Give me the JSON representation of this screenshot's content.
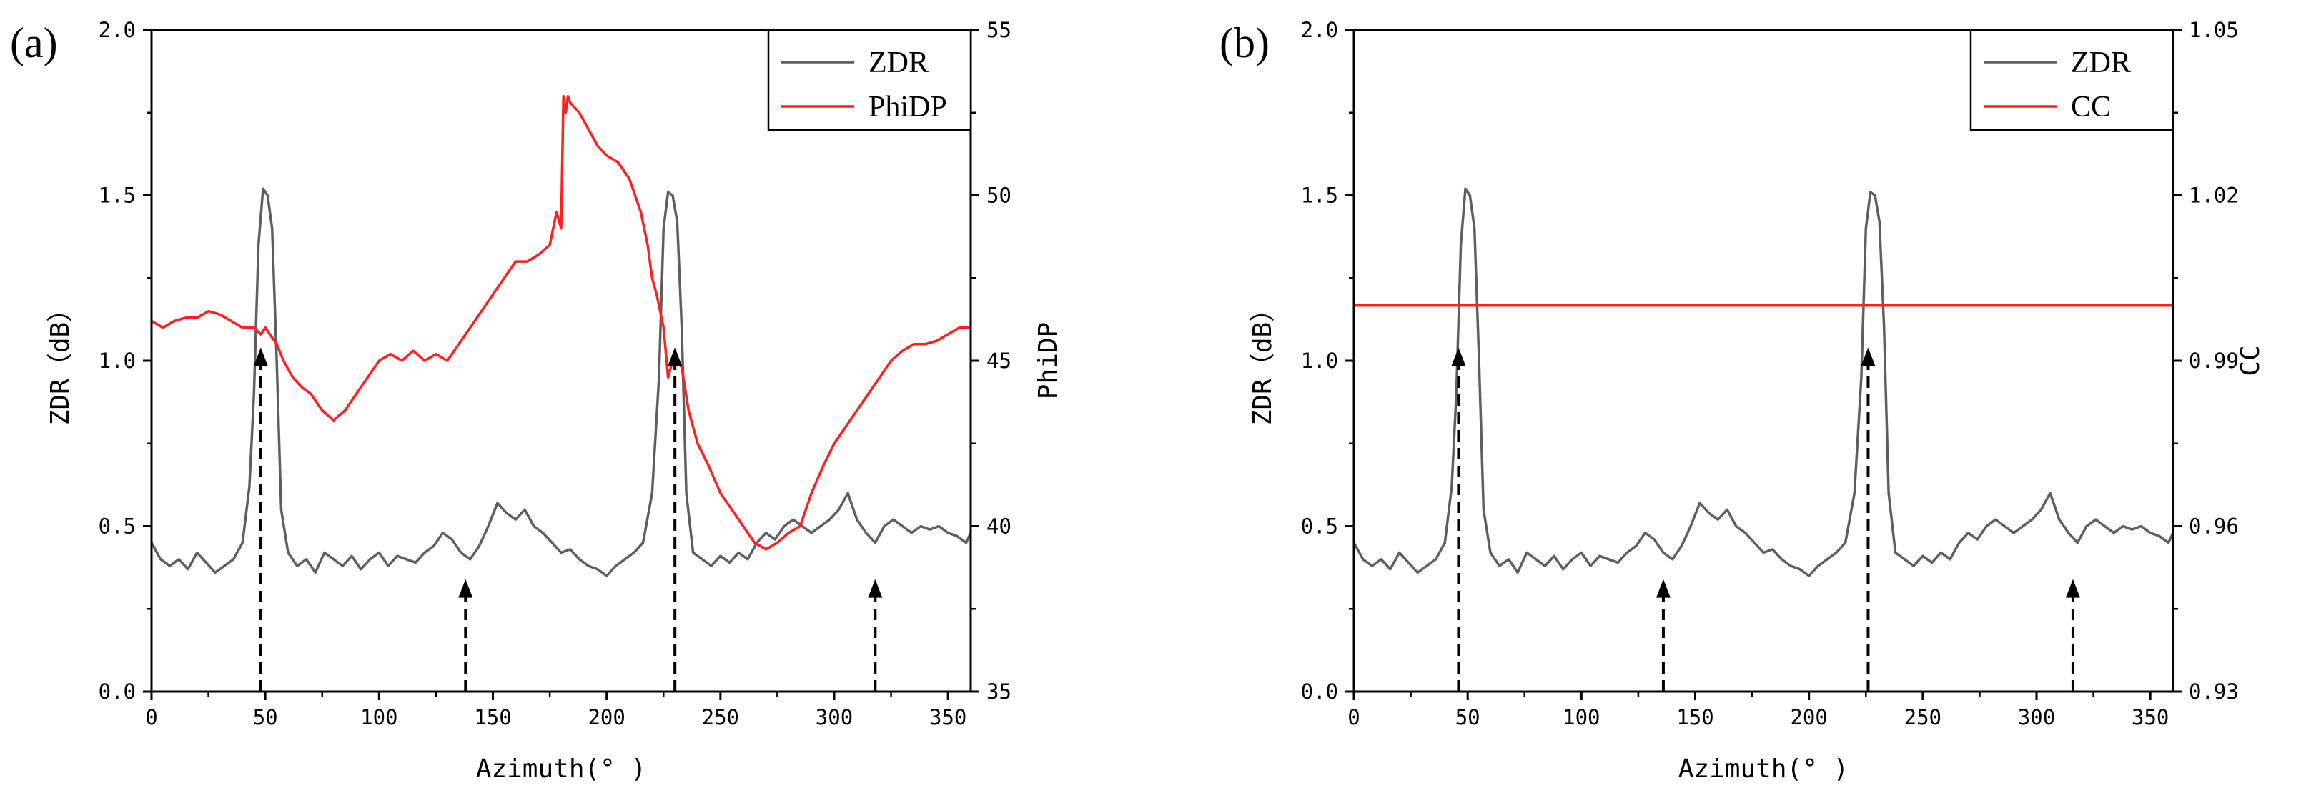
{
  "chart_data": [
    {
      "panel_label": "(a)",
      "type": "line",
      "xlabel": "Azimuth(° )",
      "ylabel_left": "ZDR（dB）",
      "ylabel_right": "PhiDP",
      "xlim": [
        0,
        360
      ],
      "xticks": [
        0,
        50,
        100,
        150,
        200,
        250,
        300,
        350
      ],
      "ylim_left": [
        0,
        2
      ],
      "yticks_left": [
        "0.0",
        "0.5",
        "1.0",
        "1.5",
        "2.0"
      ],
      "ylim_right": [
        35,
        55
      ],
      "yticks_right": [
        "35",
        "40",
        "45",
        "50",
        "55"
      ],
      "legend": [
        "ZDR",
        "PhiDP"
      ],
      "series": [
        {
          "name": "ZDR",
          "axis": "left",
          "color": "#5f5f5f",
          "x": [
            0,
            4,
            8,
            12,
            16,
            20,
            24,
            28,
            32,
            36,
            40,
            43,
            45,
            47,
            49,
            51,
            53,
            55,
            57,
            60,
            64,
            68,
            72,
            76,
            80,
            84,
            88,
            92,
            96,
            100,
            104,
            108,
            112,
            116,
            120,
            124,
            128,
            132,
            136,
            140,
            144,
            148,
            152,
            156,
            160,
            164,
            168,
            172,
            176,
            180,
            184,
            188,
            192,
            196,
            200,
            204,
            208,
            212,
            216,
            220,
            223,
            225,
            227,
            229,
            231,
            233,
            235,
            238,
            242,
            246,
            250,
            254,
            258,
            262,
            266,
            270,
            274,
            278,
            282,
            286,
            290,
            294,
            298,
            302,
            306,
            310,
            314,
            318,
            322,
            326,
            330,
            334,
            338,
            342,
            346,
            350,
            354,
            358,
            360
          ],
          "y": [
            0.45,
            0.4,
            0.38,
            0.4,
            0.37,
            0.42,
            0.39,
            0.36,
            0.38,
            0.4,
            0.45,
            0.62,
            0.9,
            1.35,
            1.52,
            1.5,
            1.4,
            1.0,
            0.55,
            0.42,
            0.38,
            0.4,
            0.36,
            0.42,
            0.4,
            0.38,
            0.41,
            0.37,
            0.4,
            0.42,
            0.38,
            0.41,
            0.4,
            0.39,
            0.42,
            0.44,
            0.48,
            0.46,
            0.42,
            0.4,
            0.44,
            0.5,
            0.57,
            0.54,
            0.52,
            0.55,
            0.5,
            0.48,
            0.45,
            0.42,
            0.43,
            0.4,
            0.38,
            0.37,
            0.35,
            0.38,
            0.4,
            0.42,
            0.45,
            0.6,
            0.95,
            1.4,
            1.51,
            1.5,
            1.42,
            1.1,
            0.6,
            0.42,
            0.4,
            0.38,
            0.41,
            0.39,
            0.42,
            0.4,
            0.45,
            0.48,
            0.46,
            0.5,
            0.52,
            0.5,
            0.48,
            0.5,
            0.52,
            0.55,
            0.6,
            0.52,
            0.48,
            0.45,
            0.5,
            0.52,
            0.5,
            0.48,
            0.5,
            0.49,
            0.5,
            0.48,
            0.47,
            0.45,
            0.48
          ]
        },
        {
          "name": "PhiDP",
          "axis": "right",
          "color": "#ff2020",
          "x": [
            0,
            5,
            10,
            15,
            20,
            25,
            30,
            35,
            40,
            45,
            48,
            50,
            52,
            55,
            58,
            62,
            66,
            70,
            75,
            80,
            85,
            90,
            95,
            100,
            105,
            110,
            115,
            120,
            125,
            130,
            135,
            140,
            145,
            150,
            155,
            160,
            165,
            170,
            175,
            178,
            180,
            181,
            182,
            183,
            184,
            188,
            192,
            196,
            200,
            205,
            210,
            215,
            218,
            220,
            222,
            225,
            227,
            229,
            231,
            233,
            236,
            240,
            245,
            250,
            255,
            260,
            265,
            270,
            275,
            280,
            285,
            290,
            295,
            300,
            305,
            310,
            315,
            320,
            325,
            330,
            335,
            340,
            345,
            350,
            355,
            360
          ],
          "y": [
            46.2,
            46.0,
            46.2,
            46.3,
            46.3,
            46.5,
            46.4,
            46.2,
            46.0,
            46.0,
            45.8,
            46.0,
            45.8,
            45.5,
            45.0,
            44.5,
            44.2,
            44.0,
            43.5,
            43.2,
            43.5,
            44.0,
            44.5,
            45.0,
            45.2,
            45.0,
            45.3,
            45.0,
            45.2,
            45.0,
            45.5,
            46.0,
            46.5,
            47.0,
            47.5,
            48.0,
            48.0,
            48.2,
            48.5,
            49.5,
            49.0,
            53.0,
            52.5,
            53.0,
            52.8,
            52.5,
            52.0,
            51.5,
            51.2,
            51.0,
            50.5,
            49.5,
            48.5,
            47.5,
            47.0,
            46.0,
            44.5,
            45.0,
            45.0,
            44.8,
            43.5,
            42.5,
            41.8,
            41.0,
            40.5,
            40.0,
            39.5,
            39.3,
            39.5,
            39.8,
            40.0,
            41.0,
            41.8,
            42.5,
            43.0,
            43.5,
            44.0,
            44.5,
            45.0,
            45.3,
            45.5,
            45.5,
            45.6,
            45.8,
            46.0,
            46.0
          ]
        }
      ],
      "arrow_azimuths": [
        48,
        138,
        230,
        318
      ]
    },
    {
      "panel_label": "(b)",
      "type": "line",
      "xlabel": "Azimuth(° )",
      "ylabel_left": "ZDR（dB）",
      "ylabel_right": "CC",
      "xlim": [
        0,
        360
      ],
      "xticks": [
        0,
        50,
        100,
        150,
        200,
        250,
        300,
        350
      ],
      "ylim_left": [
        0,
        2
      ],
      "yticks_left": [
        "0.0",
        "0.5",
        "1.0",
        "1.5",
        "2.0"
      ],
      "ylim_right": [
        0.93,
        1.05
      ],
      "yticks_right": [
        "0.93",
        "0.96",
        "0.99",
        "1.02",
        "1.05"
      ],
      "legend": [
        "ZDR",
        "CC"
      ],
      "series": [
        {
          "name": "ZDR",
          "axis": "left",
          "color": "#5f5f5f",
          "x": [
            0,
            4,
            8,
            12,
            16,
            20,
            24,
            28,
            32,
            36,
            40,
            43,
            45,
            47,
            49,
            51,
            53,
            55,
            57,
            60,
            64,
            68,
            72,
            76,
            80,
            84,
            88,
            92,
            96,
            100,
            104,
            108,
            112,
            116,
            120,
            124,
            128,
            132,
            136,
            140,
            144,
            148,
            152,
            156,
            160,
            164,
            168,
            172,
            176,
            180,
            184,
            188,
            192,
            196,
            200,
            204,
            208,
            212,
            216,
            220,
            223,
            225,
            227,
            229,
            231,
            233,
            235,
            238,
            242,
            246,
            250,
            254,
            258,
            262,
            266,
            270,
            274,
            278,
            282,
            286,
            290,
            294,
            298,
            302,
            306,
            310,
            314,
            318,
            322,
            326,
            330,
            334,
            338,
            342,
            346,
            350,
            354,
            358,
            360
          ],
          "y": [
            0.45,
            0.4,
            0.38,
            0.4,
            0.37,
            0.42,
            0.39,
            0.36,
            0.38,
            0.4,
            0.45,
            0.62,
            0.9,
            1.35,
            1.52,
            1.5,
            1.4,
            1.0,
            0.55,
            0.42,
            0.38,
            0.4,
            0.36,
            0.42,
            0.4,
            0.38,
            0.41,
            0.37,
            0.4,
            0.42,
            0.38,
            0.41,
            0.4,
            0.39,
            0.42,
            0.44,
            0.48,
            0.46,
            0.42,
            0.4,
            0.44,
            0.5,
            0.57,
            0.54,
            0.52,
            0.55,
            0.5,
            0.48,
            0.45,
            0.42,
            0.43,
            0.4,
            0.38,
            0.37,
            0.35,
            0.38,
            0.4,
            0.42,
            0.45,
            0.6,
            0.95,
            1.4,
            1.51,
            1.5,
            1.42,
            1.1,
            0.6,
            0.42,
            0.4,
            0.38,
            0.41,
            0.39,
            0.42,
            0.4,
            0.45,
            0.48,
            0.46,
            0.5,
            0.52,
            0.5,
            0.48,
            0.5,
            0.52,
            0.55,
            0.6,
            0.52,
            0.48,
            0.45,
            0.5,
            0.52,
            0.5,
            0.48,
            0.5,
            0.49,
            0.5,
            0.48,
            0.47,
            0.45,
            0.48
          ]
        },
        {
          "name": "CC",
          "axis": "right",
          "color": "#ff2020",
          "x": [
            0,
            360
          ],
          "y": [
            1.0,
            1.0
          ]
        }
      ],
      "arrow_azimuths": [
        46,
        136,
        226,
        316
      ]
    }
  ]
}
